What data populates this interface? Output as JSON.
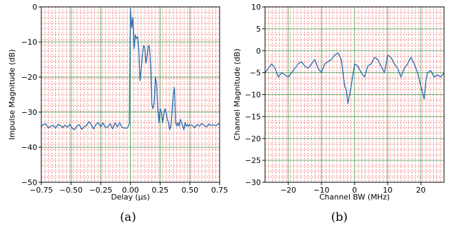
{
  "chart_data": [
    {
      "type": "line",
      "caption": "(a)",
      "xlabel": "Delay (µs)",
      "ylabel": "Impulse Magnitude (dB)",
      "xlim": [
        -0.75,
        0.75
      ],
      "ylim": [
        -50,
        0
      ],
      "xticks": [
        -0.75,
        -0.5,
        -0.25,
        0.0,
        0.25,
        0.5,
        0.75
      ],
      "xtick_labels": [
        "−0.75",
        "−0.50",
        "−0.25",
        "0.00",
        "0.25",
        "0.50",
        "0.75"
      ],
      "yticks": [
        0,
        -10,
        -20,
        -30,
        -40,
        -50
      ],
      "ytick_labels": [
        "0",
        "−10",
        "−20",
        "−30",
        "−40",
        "−50"
      ],
      "grid": true,
      "line_color": "#2f6fb0",
      "series": [
        {
          "x": [
            -0.75,
            -0.73,
            -0.71,
            -0.69,
            -0.67,
            -0.65,
            -0.63,
            -0.61,
            -0.59,
            -0.57,
            -0.55,
            -0.53,
            -0.51,
            -0.49,
            -0.47,
            -0.45,
            -0.43,
            -0.41,
            -0.39,
            -0.37,
            -0.35,
            -0.33,
            -0.31,
            -0.29,
            -0.27,
            -0.25,
            -0.23,
            -0.21,
            -0.19,
            -0.17,
            -0.15,
            -0.13,
            -0.11,
            -0.09,
            -0.07,
            -0.05,
            -0.03,
            -0.02,
            -0.01,
            0.0,
            0.01,
            0.02,
            0.03,
            0.04,
            0.05,
            0.06,
            0.07,
            0.08,
            0.09,
            0.1,
            0.11,
            0.12,
            0.13,
            0.14,
            0.15,
            0.16,
            0.17,
            0.18,
            0.19,
            0.2,
            0.21,
            0.22,
            0.23,
            0.24,
            0.25,
            0.26,
            0.27,
            0.28,
            0.29,
            0.3,
            0.31,
            0.32,
            0.33,
            0.34,
            0.35,
            0.36,
            0.37,
            0.38,
            0.39,
            0.4,
            0.41,
            0.42,
            0.43,
            0.44,
            0.45,
            0.46,
            0.47,
            0.48,
            0.49,
            0.5,
            0.52,
            0.54,
            0.56,
            0.58,
            0.6,
            0.62,
            0.64,
            0.66,
            0.68,
            0.7,
            0.72,
            0.74,
            0.75
          ],
          "y": [
            -34,
            -33.5,
            -33.4,
            -34.5,
            -34,
            -33.7,
            -34.6,
            -33.5,
            -33.8,
            -34.4,
            -33.7,
            -34.3,
            -33.5,
            -34.6,
            -35,
            -33.9,
            -33.6,
            -34.9,
            -34.2,
            -33.8,
            -32.7,
            -33.5,
            -34.8,
            -33.5,
            -33,
            -34.2,
            -33.1,
            -34.5,
            -34.2,
            -33.3,
            -34.8,
            -33.1,
            -34.2,
            -33,
            -34.4,
            -34.5,
            -34.6,
            -34.2,
            -33.5,
            -0.5,
            -6,
            -3,
            -12,
            -8,
            -9,
            -8.5,
            -12,
            -21,
            -18,
            -14,
            -11,
            -11.5,
            -16,
            -14,
            -11,
            -11.3,
            -17,
            -28,
            -29,
            -27,
            -20,
            -22,
            -29,
            -33,
            -29,
            -30,
            -33,
            -31,
            -29,
            -30,
            -32,
            -33,
            -35,
            -34,
            -30,
            -25,
            -23,
            -33,
            -34,
            -33,
            -34,
            -32,
            -33,
            -34,
            -35,
            -33,
            -34,
            -33.5,
            -34,
            -33.6,
            -33.8,
            -34.5,
            -33.5,
            -34,
            -33.2,
            -33.8,
            -34.2,
            -33.4,
            -33.8,
            -33.6,
            -33.9,
            -33.3,
            -33.5
          ]
        }
      ]
    },
    {
      "type": "line",
      "caption": "(b)",
      "xlabel": "Channel BW (MHz)",
      "ylabel": "Channel Magnitude (dB)",
      "xlim": [
        -27,
        27
      ],
      "ylim": [
        -30,
        10
      ],
      "xticks": [
        -20,
        -10,
        0,
        10,
        20
      ],
      "xtick_labels": [
        "−20",
        "−10",
        "0",
        "10",
        "20"
      ],
      "yticks": [
        10,
        5,
        0,
        -5,
        -10,
        -15,
        -20,
        -25,
        -30
      ],
      "ytick_labels": [
        "10",
        "5",
        "0",
        "−5",
        "−10",
        "−15",
        "−20",
        "−25",
        "−30"
      ],
      "grid": true,
      "line_color": "#2f6fb0",
      "series": [
        {
          "x": [
            -27,
            -26,
            -25,
            -24,
            -23,
            -22,
            -21,
            -20,
            -19,
            -18,
            -17,
            -16,
            -15,
            -14,
            -13,
            -12,
            -11,
            -10,
            -9,
            -8,
            -7,
            -6,
            -5,
            -4,
            -3.5,
            -3,
            -2.5,
            -2,
            -1,
            0,
            1,
            2,
            3,
            4,
            5,
            6,
            7,
            8,
            9,
            10,
            11,
            12,
            13,
            14,
            15,
            16,
            17,
            18,
            19,
            20,
            20.5,
            21,
            21.5,
            22,
            23,
            24,
            25,
            26,
            27
          ],
          "y": [
            -5,
            -4,
            -3,
            -4,
            -6,
            -5,
            -5.5,
            -6,
            -5,
            -4,
            -3,
            -2.5,
            -3.5,
            -4,
            -3,
            -2,
            -4,
            -5,
            -3,
            -2.5,
            -2,
            -1,
            -0.5,
            -2,
            -5,
            -8,
            -9,
            -12,
            -8,
            -3,
            -3.5,
            -5,
            -6,
            -3.5,
            -3,
            -1.5,
            -2,
            -3.5,
            -5,
            -1,
            -1.5,
            -3,
            -4,
            -6,
            -4,
            -3,
            -1.5,
            -3,
            -5,
            -8,
            -9.5,
            -11,
            -7,
            -5,
            -4.5,
            -6,
            -5.5,
            -6,
            -5
          ]
        }
      ]
    }
  ]
}
